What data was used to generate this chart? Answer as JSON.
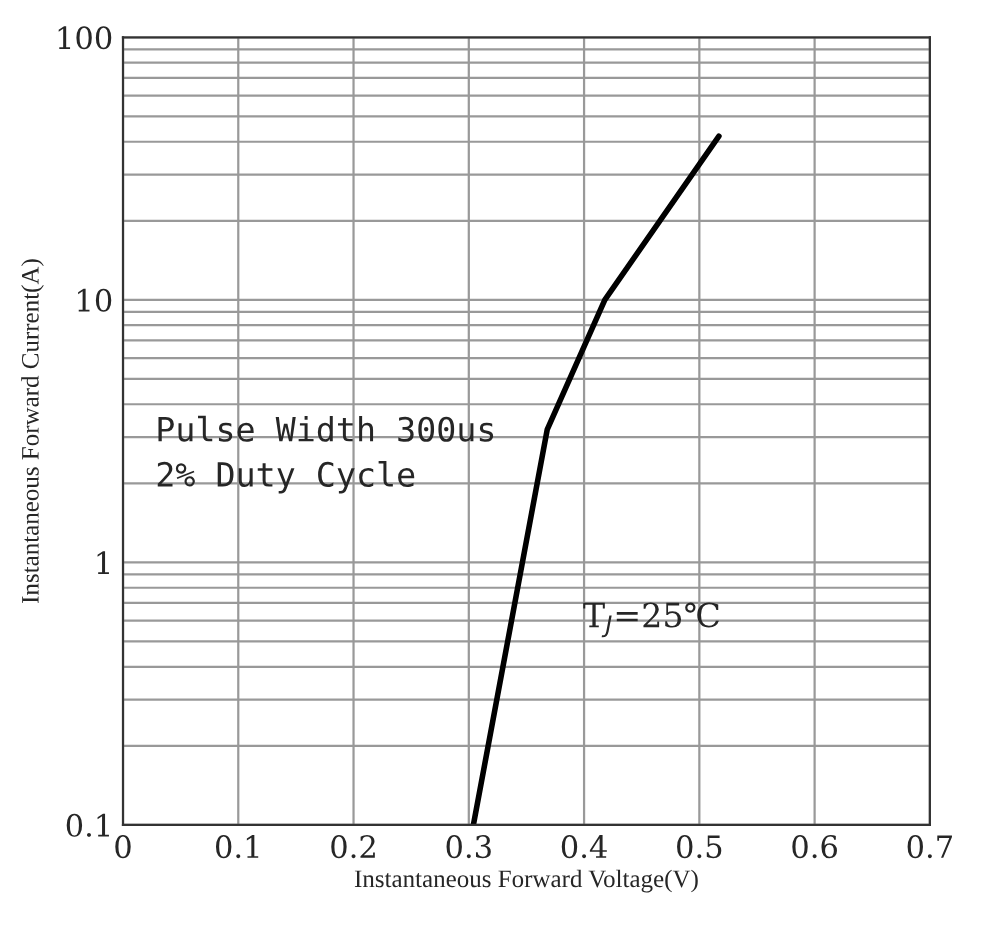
{
  "chart_data": {
    "type": "line",
    "xlabel": "Instantaneous Forward Voltage(V)",
    "ylabel": "Instantaneous Forward Current(A)",
    "x": [
      0.304,
      0.368,
      0.418,
      0.517
    ],
    "series": [
      {
        "color": "#000000",
        "values": [
          0.1,
          3.2,
          10,
          42
        ]
      }
    ],
    "log": "y",
    "grid": true,
    "xlim": [
      0,
      0.7
    ],
    "xticks": [
      0,
      0.1,
      0.2,
      0.3,
      0.4,
      0.5,
      0.6,
      0.7
    ],
    "ylim": [
      0.1,
      100
    ],
    "yticks": [
      0.1,
      1,
      10,
      100
    ],
    "annotations": [
      "Pulse Width 300us\n2% Duty Cycle",
      "T$_{J}$=25℃"
    ]
  }
}
